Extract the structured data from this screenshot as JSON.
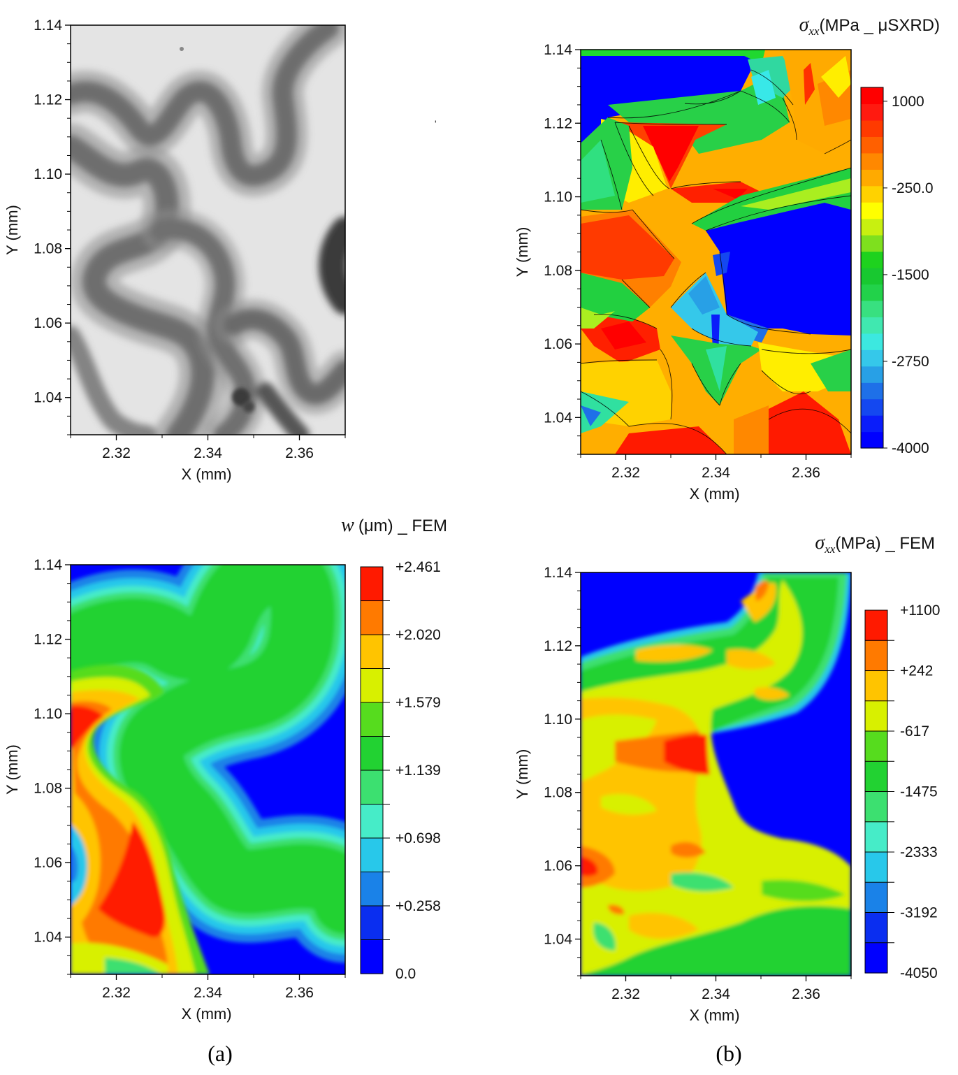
{
  "figure": {
    "sublabels": [
      "(a)",
      "(b)"
    ]
  },
  "chart_data": [
    {
      "id": "panel_tl",
      "type": "heatmap",
      "content": "grayscale wrinkle image",
      "title": "",
      "xlabel": "X (mm)",
      "ylabel": "Y (mm)",
      "xlim": [
        2.31,
        2.37
      ],
      "ylim": [
        1.03,
        1.14
      ],
      "xticks": [
        "2.32",
        "2.34",
        "2.36"
      ],
      "xtick_values": [
        2.32,
        2.34,
        2.36
      ],
      "yticks": [
        "1.04",
        "1.06",
        "1.08",
        "1.10",
        "1.12",
        "1.14"
      ],
      "ytick_values": [
        1.04,
        1.06,
        1.08,
        1.1,
        1.12,
        1.14
      ],
      "colors": {
        "background": "#e6e6e6",
        "band": "#555555"
      }
    },
    {
      "id": "panel_tr",
      "type": "heatmap",
      "title_symbol": "σ",
      "title_sub": "xx",
      "title_rest": "(MPa _ μSXRD)",
      "xlabel": "X (mm)",
      "ylabel": "Y (mm)",
      "xlim": [
        2.31,
        2.37
      ],
      "ylim": [
        1.03,
        1.14
      ],
      "xticks": [
        "2.32",
        "2.34",
        "2.36"
      ],
      "xtick_values": [
        2.32,
        2.34,
        2.36
      ],
      "yticks": [
        "1.04",
        "1.06",
        "1.08",
        "1.10",
        "1.12",
        "1.14"
      ],
      "ytick_values": [
        1.04,
        1.06,
        1.08,
        1.1,
        1.12,
        1.14
      ],
      "colorbar": {
        "labels": [
          "1000",
          "-250.0",
          "-1500",
          "-2750",
          "-4000"
        ],
        "label_values": [
          1000,
          -250,
          -1500,
          -2750,
          -4000
        ],
        "range": [
          -4000,
          1200
        ],
        "colors": [
          "#0000ff",
          "#0a1dfa",
          "#1448f0",
          "#1e70e8",
          "#28a0e6",
          "#35c8ea",
          "#3ce8e0",
          "#40e8b0",
          "#38e080",
          "#22d24a",
          "#18c830",
          "#1ed21e",
          "#7ee01e",
          "#c8f010",
          "#ffff00",
          "#ffd200",
          "#ffaa00",
          "#ff8800",
          "#ff6000",
          "#ff3a00",
          "#ff1a10",
          "#ff0000"
        ]
      },
      "regions": [
        {
          "value": -4000,
          "desc": "low stress blue region right-center"
        },
        {
          "value": 1000,
          "desc": "high stress red regions left side"
        }
      ]
    },
    {
      "id": "panel_bl",
      "type": "heatmap",
      "title_symbol": "w",
      "title_rest": "(μm) _ FEM",
      "xlabel": "X (mm)",
      "ylabel": "Y (mm)",
      "xlim": [
        2.31,
        2.37
      ],
      "ylim": [
        1.03,
        1.14
      ],
      "xticks": [
        "2.32",
        "2.34",
        "2.36"
      ],
      "xtick_values": [
        2.32,
        2.34,
        2.36
      ],
      "yticks": [
        "1.04",
        "1.06",
        "1.08",
        "1.10",
        "1.12",
        "1.14"
      ],
      "ytick_values": [
        1.04,
        1.06,
        1.08,
        1.1,
        1.12,
        1.14
      ],
      "colorbar": {
        "labels": [
          "+2.461",
          "+2.020",
          "+1.579",
          "+1.139",
          "+0.698",
          "+0.258",
          "0.0"
        ],
        "label_values": [
          2.461,
          2.02,
          1.579,
          1.139,
          0.698,
          0.258,
          0.0
        ],
        "range": [
          0.0,
          2.461
        ],
        "colors": [
          "#0000ff",
          "#0a2ef0",
          "#1a82e8",
          "#28c8ea",
          "#46ecc8",
          "#3ce070",
          "#22d232",
          "#56dc1e",
          "#d8f000",
          "#ffc400",
          "#ff7a00",
          "#ff1a00"
        ]
      }
    },
    {
      "id": "panel_br",
      "type": "heatmap",
      "title_symbol": "σ",
      "title_sub": "xx",
      "title_rest": "(MPa) _ FEM",
      "xlabel": "X (mm)",
      "ylabel": "Y (mm)",
      "xlim": [
        2.31,
        2.37
      ],
      "ylim": [
        1.03,
        1.14
      ],
      "xticks": [
        "2.32",
        "2.34",
        "2.36"
      ],
      "xtick_values": [
        2.32,
        2.34,
        2.36
      ],
      "yticks": [
        "1.04",
        "1.06",
        "1.08",
        "1.10",
        "1.12",
        "1.14"
      ],
      "ytick_values": [
        1.04,
        1.06,
        1.08,
        1.1,
        1.12,
        1.14
      ],
      "colorbar": {
        "labels": [
          "+1100",
          "+242",
          "-617",
          "-1475",
          "-2333",
          "-3192",
          "-4050"
        ],
        "label_values": [
          1100,
          242,
          -617,
          -1475,
          -2333,
          -3192,
          -4050
        ],
        "range": [
          -4050,
          1100
        ],
        "colors": [
          "#0000ff",
          "#0a2ef0",
          "#1a82e8",
          "#28c8ea",
          "#46ecc8",
          "#3ce070",
          "#22d232",
          "#56dc1e",
          "#d8f000",
          "#ffc400",
          "#ff7a00",
          "#ff1a00"
        ]
      }
    }
  ]
}
